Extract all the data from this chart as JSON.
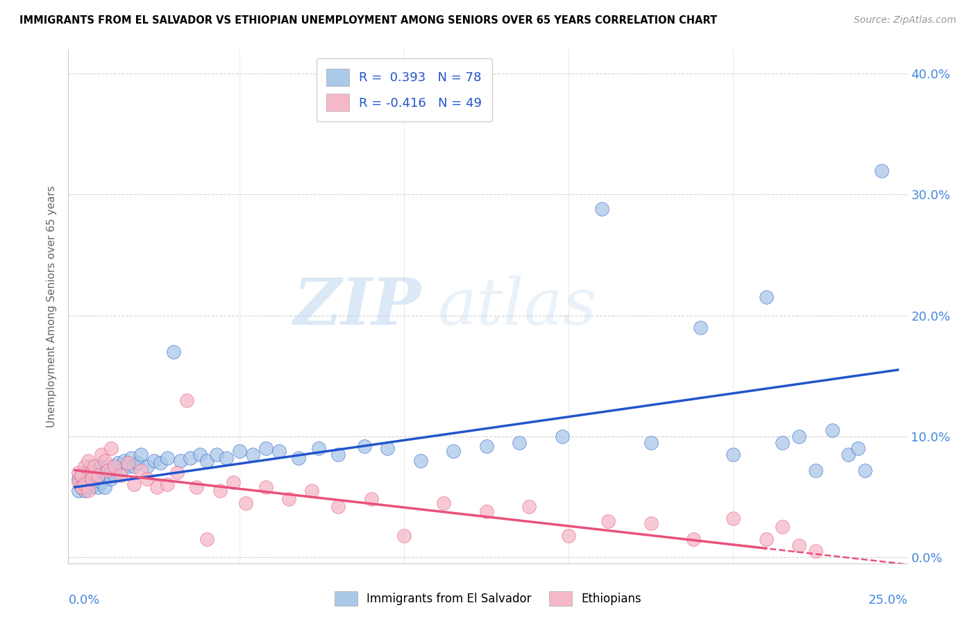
{
  "title": "IMMIGRANTS FROM EL SALVADOR VS ETHIOPIAN UNEMPLOYMENT AMONG SENIORS OVER 65 YEARS CORRELATION CHART",
  "source": "Source: ZipAtlas.com",
  "ylabel": "Unemployment Among Seniors over 65 years",
  "watermark_zip": "ZIP",
  "watermark_atlas": "atlas",
  "legend_entry1": "R =  0.393   N = 78",
  "legend_entry2": "R = -0.416   N = 49",
  "legend_label1": "Immigrants from El Salvador",
  "legend_label2": "Ethiopians",
  "blue_color": "#aac8e8",
  "pink_color": "#f5b8c8",
  "blue_line_color": "#2255cc",
  "pink_line_color": "#e8507a",
  "axis_label_color": "#4488dd",
  "xmin": 0.0,
  "xmax": 0.25,
  "ymin": -0.005,
  "ymax": 0.42,
  "y_ticks": [
    0.0,
    0.1,
    0.2,
    0.3,
    0.4
  ],
  "blue_x": [
    0.001,
    0.001,
    0.002,
    0.002,
    0.002,
    0.003,
    0.003,
    0.003,
    0.004,
    0.004,
    0.004,
    0.005,
    0.005,
    0.005,
    0.005,
    0.006,
    0.006,
    0.006,
    0.007,
    0.007,
    0.007,
    0.008,
    0.008,
    0.008,
    0.009,
    0.009,
    0.01,
    0.01,
    0.011,
    0.011,
    0.012,
    0.012,
    0.013,
    0.014,
    0.015,
    0.016,
    0.017,
    0.018,
    0.019,
    0.02,
    0.022,
    0.024,
    0.026,
    0.028,
    0.03,
    0.032,
    0.035,
    0.038,
    0.04,
    0.043,
    0.046,
    0.05,
    0.054,
    0.058,
    0.062,
    0.068,
    0.074,
    0.08,
    0.088,
    0.095,
    0.105,
    0.115,
    0.125,
    0.135,
    0.148,
    0.16,
    0.175,
    0.19,
    0.2,
    0.21,
    0.215,
    0.22,
    0.225,
    0.23,
    0.235,
    0.238,
    0.24,
    0.245
  ],
  "blue_y": [
    0.055,
    0.065,
    0.06,
    0.068,
    0.058,
    0.062,
    0.07,
    0.055,
    0.065,
    0.072,
    0.058,
    0.06,
    0.068,
    0.075,
    0.058,
    0.065,
    0.07,
    0.06,
    0.072,
    0.065,
    0.058,
    0.068,
    0.075,
    0.062,
    0.07,
    0.058,
    0.075,
    0.068,
    0.072,
    0.065,
    0.075,
    0.068,
    0.078,
    0.072,
    0.08,
    0.075,
    0.082,
    0.075,
    0.078,
    0.085,
    0.075,
    0.08,
    0.078,
    0.082,
    0.17,
    0.08,
    0.082,
    0.085,
    0.08,
    0.085,
    0.082,
    0.088,
    0.085,
    0.09,
    0.088,
    0.082,
    0.09,
    0.085,
    0.092,
    0.09,
    0.08,
    0.088,
    0.092,
    0.095,
    0.1,
    0.288,
    0.095,
    0.19,
    0.085,
    0.215,
    0.095,
    0.1,
    0.072,
    0.105,
    0.085,
    0.09,
    0.072,
    0.32
  ],
  "pink_x": [
    0.001,
    0.001,
    0.002,
    0.002,
    0.003,
    0.003,
    0.004,
    0.004,
    0.005,
    0.005,
    0.006,
    0.007,
    0.008,
    0.009,
    0.01,
    0.011,
    0.012,
    0.014,
    0.016,
    0.018,
    0.02,
    0.022,
    0.025,
    0.028,
    0.031,
    0.034,
    0.037,
    0.04,
    0.044,
    0.048,
    0.052,
    0.058,
    0.065,
    0.072,
    0.08,
    0.09,
    0.1,
    0.112,
    0.125,
    0.138,
    0.15,
    0.162,
    0.175,
    0.188,
    0.2,
    0.21,
    0.215,
    0.22,
    0.225
  ],
  "pink_y": [
    0.062,
    0.07,
    0.068,
    0.058,
    0.075,
    0.06,
    0.08,
    0.055,
    0.07,
    0.065,
    0.075,
    0.068,
    0.085,
    0.08,
    0.072,
    0.09,
    0.075,
    0.068,
    0.078,
    0.06,
    0.072,
    0.065,
    0.058,
    0.06,
    0.07,
    0.13,
    0.058,
    0.015,
    0.055,
    0.062,
    0.045,
    0.058,
    0.048,
    0.055,
    0.042,
    0.048,
    0.018,
    0.045,
    0.038,
    0.042,
    0.018,
    0.03,
    0.028,
    0.015,
    0.032,
    0.015,
    0.025,
    0.01,
    0.005
  ],
  "background_color": "#ffffff",
  "grid_color": "#cccccc",
  "blue_trend_start_y": 0.058,
  "blue_trend_end_y": 0.155,
  "pink_trend_start_y": 0.072,
  "pink_trend_end_y": -0.005
}
